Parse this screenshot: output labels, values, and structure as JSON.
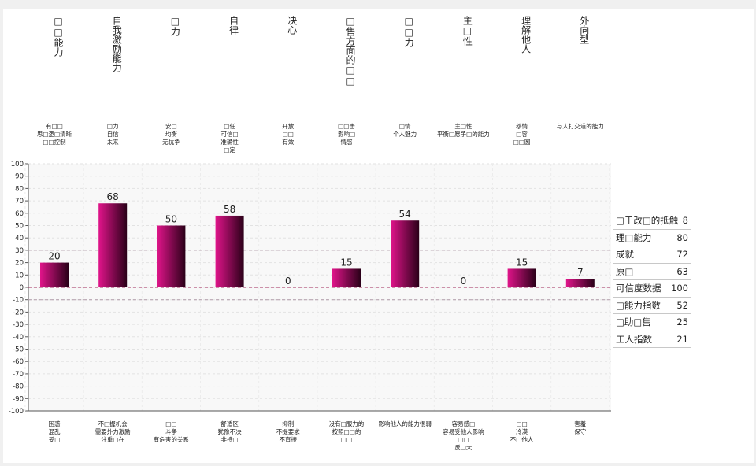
{
  "chart_data": {
    "type": "bar",
    "categories": [
      "□□能力",
      "自我激励能力",
      "□力",
      "自律",
      "决心",
      "□售方面的□□",
      "□□力",
      "主□性",
      "理解他人",
      "外向型"
    ],
    "values": [
      20,
      68,
      50,
      58,
      0,
      15,
      54,
      0,
      15,
      7
    ],
    "top_descriptions": [
      [
        "有□□",
        "思□逻□清晰",
        "□□控制"
      ],
      [
        "□力",
        "自信",
        "未来"
      ],
      [
        "安□",
        "均衡",
        "无抗争"
      ],
      [
        "□任",
        "可信□",
        "准确性",
        "□定"
      ],
      [
        "开放",
        "□□",
        "有效"
      ],
      [
        "□□击",
        "影响□",
        "情感"
      ],
      [
        "□情",
        "个人魅力"
      ],
      [
        "主□性",
        "平衡□愿争□的能力"
      ],
      [
        "移情",
        "□容",
        "□□圆"
      ],
      [
        "与人打交道的能力"
      ]
    ],
    "bottom_descriptions": [
      [
        "困惑",
        "混乱",
        "妥□"
      ],
      [
        "不□握机会",
        "需要外力激励",
        "注重□在"
      ],
      [
        "□□",
        "斗争",
        "有危害的关系"
      ],
      [
        "舒适区",
        "犹豫不决",
        "非持□"
      ],
      [
        "抑制",
        "不提要求",
        "不直接"
      ],
      [
        "没有□服力的",
        "按照□□的",
        "□□"
      ],
      [
        "影响他人的能力很弱"
      ],
      [
        "容易感□",
        "容易受他人影响",
        "□□",
        "反□大"
      ],
      [
        "□□",
        "冷漠",
        "不□他人"
      ],
      [
        "害羞",
        "保守"
      ]
    ],
    "ylim": [
      -100,
      100
    ],
    "yticks": [
      100,
      90,
      80,
      70,
      60,
      50,
      40,
      30,
      20,
      10,
      0,
      -10,
      -20,
      -30,
      -40,
      -50,
      -60,
      -70,
      -80,
      -90,
      -100
    ],
    "reference_lines": [
      30,
      0,
      -10
    ],
    "bar_color_light": "#e0148a",
    "bar_color_dark": "#2a0018",
    "legend": [
      {
        "label": "□于改□的抵触",
        "value": "8"
      },
      {
        "label": "理□能力",
        "value": "80"
      },
      {
        "label": "成就",
        "value": "72"
      },
      {
        "label": "原□",
        "value": "63"
      },
      {
        "label": "可信度数据",
        "value": "100"
      },
      {
        "label": "□能力指数",
        "value": "52"
      },
      {
        "label": "□助□售",
        "value": "25"
      },
      {
        "label": "工人指数",
        "value": "21"
      }
    ],
    "legend_placement": "right"
  }
}
